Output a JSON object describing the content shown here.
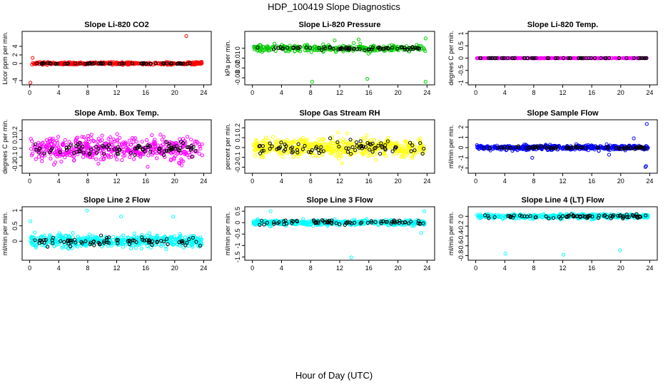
{
  "page": {
    "title": "HDP_100419  Slope Diagnostics",
    "xlabel": "Hour of Day (UTC)"
  },
  "colors": {
    "background": "#ffffff",
    "axis": "#000000",
    "black_series": "#000000"
  },
  "chart_data": [
    {
      "type": "scatter",
      "title": "Slope Li-820 CO2",
      "ylabel": "Licor ppm per min.",
      "xlim": [
        0,
        24
      ],
      "ylim": [
        -4.5,
        7
      ],
      "xticks": [
        0,
        4,
        8,
        12,
        16,
        20,
        24
      ],
      "yticks": [
        -4,
        0,
        2,
        4
      ],
      "color": "#ff0000",
      "spread": 0.25,
      "black_spread": 0.15,
      "n_points": 420,
      "n_black": 60,
      "outliers": [
        [
          0.1,
          -4.6
        ],
        [
          0.4,
          1.3
        ],
        [
          21.6,
          6.4
        ],
        [
          23.7,
          0.4
        ]
      ]
    },
    {
      "type": "scatter",
      "title": "Slope Li-820 Pressure",
      "ylabel": "kPa per min.",
      "xlim": [
        0,
        24
      ],
      "ylim": [
        -0.035,
        0.015
      ],
      "xticks": [
        0,
        4,
        8,
        12,
        16,
        20,
        24
      ],
      "yticks": [
        -0.03,
        -0.02,
        -0.01,
        0.0
      ],
      "color": "#00cc00",
      "spread": 0.003,
      "black_spread": 0.002,
      "n_points": 300,
      "n_black": 70,
      "outliers": [
        [
          8.2,
          -0.034
        ],
        [
          15.8,
          -0.031
        ],
        [
          23.8,
          -0.034
        ],
        [
          23.8,
          0.01
        ],
        [
          11.3,
          0.008
        ],
        [
          14.6,
          0.009
        ]
      ]
    },
    {
      "type": "scatter",
      "title": "Slope Li-820 Temp.",
      "ylabel": "degrees C per min.",
      "xlim": [
        0,
        24
      ],
      "ylim": [
        -1,
        1
      ],
      "xticks": [
        0,
        4,
        8,
        12,
        16,
        20,
        24
      ],
      "yticks": [
        -1.0,
        -0.5,
        0.0,
        0.5,
        1.0
      ],
      "color": "#ff00ff",
      "spread": 0.004,
      "black_spread": 0.002,
      "n_points": 380,
      "n_black": 60,
      "outliers": []
    },
    {
      "type": "scatter",
      "title": "Slope Amb. Box Temp.",
      "ylabel": "degrees C per min.",
      "xlim": [
        0,
        24
      ],
      "ylim": [
        -0.26,
        0.3
      ],
      "xticks": [
        0,
        4,
        8,
        12,
        16,
        20,
        24
      ],
      "yticks": [
        -0.2,
        -0.1,
        0.0,
        0.1,
        0.2
      ],
      "color": "#ff00ff",
      "spread": 0.12,
      "black_spread": 0.08,
      "n_points": 480,
      "n_black": 90,
      "outliers": []
    },
    {
      "type": "scatter",
      "title": "Slope Gas Stream RH",
      "ylabel": "percent per min.",
      "xlim": [
        0,
        24
      ],
      "ylim": [
        -0.24,
        0.26
      ],
      "xticks": [
        0,
        4,
        8,
        12,
        16,
        20,
        24
      ],
      "yticks": [
        -0.2,
        -0.1,
        0.0,
        0.1,
        0.2
      ],
      "color": "#ffff00",
      "spread": 0.09,
      "black_spread": 0.07,
      "n_points": 480,
      "n_black": 85,
      "outliers": []
    },
    {
      "type": "scatter",
      "title": "Slope Sample Flow",
      "ylabel": "ml/min per min.",
      "xlim": [
        0,
        24
      ],
      "ylim": [
        -2.3,
        2.5
      ],
      "xticks": [
        0,
        4,
        8,
        12,
        16,
        20,
        24
      ],
      "yticks": [
        -2,
        -1,
        0,
        1,
        2
      ],
      "color": "#0000ff",
      "spread": 0.2,
      "black_spread": 0.15,
      "n_points": 440,
      "n_black": 80,
      "outliers": [
        [
          23.6,
          2.3
        ],
        [
          23.4,
          -1.9
        ],
        [
          23.5,
          -1.8
        ],
        [
          21.8,
          0.9
        ],
        [
          7.8,
          -1.0
        ],
        [
          18.4,
          -0.7
        ]
      ]
    },
    {
      "type": "scatter",
      "title": "Slope Line 2 Flow",
      "ylabel": "ml/min per min.",
      "xlim": [
        0,
        24
      ],
      "ylim": [
        -0.55,
        1.05
      ],
      "xticks": [
        0,
        4,
        8,
        12,
        16,
        20,
        24
      ],
      "yticks": [
        0.0,
        0.5,
        1.0
      ],
      "color": "#00ffff",
      "spread": 0.18,
      "black_spread": 0.12,
      "n_points": 500,
      "n_black": 80,
      "outliers": [
        [
          7.9,
          1.0
        ],
        [
          12.6,
          0.8
        ],
        [
          0.1,
          0.65
        ],
        [
          19.8,
          0.8
        ]
      ]
    },
    {
      "type": "scatter",
      "title": "Slope Line 3 Flow",
      "ylabel": "ml/min per min.",
      "xlim": [
        0,
        24
      ],
      "ylim": [
        -1.55,
        0.6
      ],
      "xticks": [
        0,
        4,
        8,
        12,
        16,
        20,
        24
      ],
      "yticks": [
        -1.5,
        -1.0,
        -0.5,
        0.0,
        0.5
      ],
      "color": "#00ffff",
      "spread": 0.1,
      "black_spread": 0.1,
      "n_points": 420,
      "n_black": 75,
      "outliers": [
        [
          13.6,
          -1.52
        ],
        [
          2.5,
          0.5
        ],
        [
          23.6,
          0.5
        ],
        [
          23.2,
          -0.45
        ]
      ]
    },
    {
      "type": "scatter",
      "title": "Slope Line 4 (LT) Flow",
      "ylabel": "ml/min per min.",
      "xlim": [
        0,
        24
      ],
      "ylim": [
        -0.85,
        0.15
      ],
      "xticks": [
        0,
        4,
        8,
        12,
        16,
        20,
        24
      ],
      "yticks": [
        -0.8,
        -0.6,
        -0.4,
        -0.2,
        0.0
      ],
      "color": "#00ffff",
      "spread": 0.04,
      "black_spread": 0.04,
      "n_points": 420,
      "n_black": 75,
      "outliers": [
        [
          4.1,
          -0.76
        ],
        [
          12.1,
          -0.78
        ],
        [
          19.9,
          -0.69
        ]
      ]
    }
  ]
}
